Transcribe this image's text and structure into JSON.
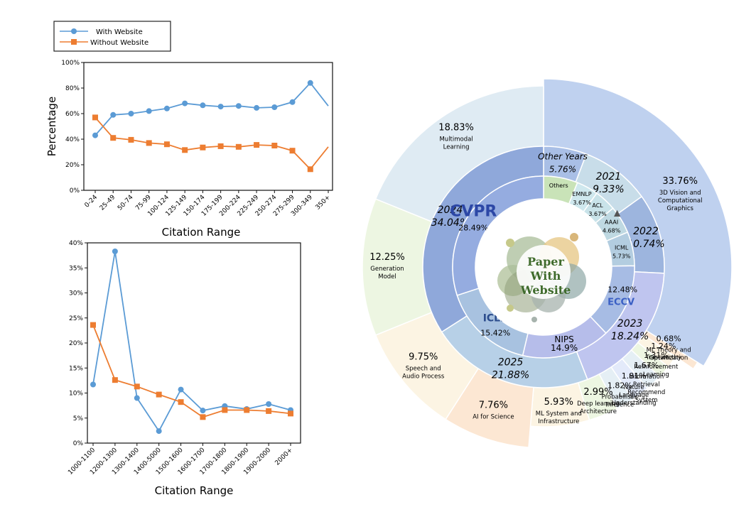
{
  "legend": {
    "with_label": "With Website",
    "without_label": "Without Website",
    "with_color": "#5b9bd5",
    "without_color": "#ed7d31"
  },
  "chart_data": [
    {
      "type": "line",
      "ylabel": "Percentage",
      "xlabel": "Citation Range",
      "ylim": [
        0,
        100
      ],
      "yticks": [
        "0%",
        "20%",
        "40%",
        "60%",
        "80%",
        "100%"
      ],
      "ytick_values": [
        0,
        20,
        40,
        60,
        80,
        100
      ],
      "categories": [
        "0-24",
        "25-49",
        "50-74",
        "75-99",
        "100-124",
        "125-149",
        "150-174",
        "175-199",
        "200-224",
        "225-249",
        "250-274",
        "275-299",
        "300-349",
        "350+"
      ],
      "series": [
        {
          "name": "With Website",
          "values": [
            43,
            59,
            60,
            62,
            64,
            68,
            66.5,
            65.5,
            66,
            64.5,
            65,
            69,
            84,
            66
          ]
        },
        {
          "name": "Without Website",
          "values": [
            57,
            41,
            39.5,
            37,
            36,
            31.5,
            33.5,
            34.5,
            34,
            35.5,
            35,
            31,
            16.5,
            34
          ]
        }
      ]
    },
    {
      "type": "line",
      "xlabel": "Citation Range",
      "ylim": [
        0,
        40
      ],
      "yticks": [
        "0%",
        "5%",
        "10%",
        "15%",
        "20%",
        "25%",
        "30%",
        "35%",
        "40%"
      ],
      "ytick_values": [
        0,
        5,
        10,
        15,
        20,
        25,
        30,
        35,
        40
      ],
      "categories": [
        "1000-1100",
        "1200-1300",
        "1300-1400",
        "1400-5000",
        "1500-1600",
        "1600-1700",
        "1700-1800",
        "1800-1900",
        "1900-2000",
        "2000+"
      ],
      "series": [
        {
          "name": "With Website",
          "values": [
            11.7,
            38.3,
            9.0,
            2.4,
            10.7,
            6.5,
            7.4,
            6.8,
            7.8,
            6.6
          ]
        },
        {
          "name": "Without Website",
          "values": [
            23.6,
            12.6,
            11.3,
            9.7,
            8.2,
            5.2,
            6.6,
            6.6,
            6.4,
            5.9
          ]
        }
      ]
    },
    {
      "type": "pie",
      "variant": "sunburst",
      "center_label": [
        "Paper",
        "With",
        "Website"
      ],
      "inner_ring": [
        {
          "label": "Others",
          "value": 5.76,
          "color": "#c9e3b8",
          "logo": ""
        },
        {
          "label": "EMNLP",
          "value": 3.67,
          "color": "#cfe8ee",
          "logo": ""
        },
        {
          "label": "ACL",
          "value": 3.67,
          "color": "#c9e3e9",
          "logo": ""
        },
        {
          "label": "AAAI",
          "value": 4.68,
          "color": "#bfd9e2",
          "logo": "▲"
        },
        {
          "label": "ICML",
          "value": 5.73,
          "color": "#b3cde0",
          "logo": ""
        },
        {
          "label": "12.48%",
          "value": 12.48,
          "color": "#a7bce4",
          "logo": "ECCV"
        },
        {
          "label": "NIPS",
          "value": 14.9,
          "color": "#b6bdea",
          "logo": ""
        },
        {
          "label": "15.42%",
          "value": 15.42,
          "color": "#a8c2e0",
          "logo": "ICLR"
        },
        {
          "label": "28.49%",
          "value": 28.49,
          "color": "#95ace0",
          "logo": "CVPR"
        }
      ],
      "inner_ring_values": [
        "5.76%",
        "3.67%",
        "3.67%",
        "4.68%",
        "5.73%",
        "14.9%"
      ],
      "year_ring": [
        {
          "year": "Other Years",
          "value": 5.76,
          "color": "#a9bfe6"
        },
        {
          "year": "2021",
          "value": 9.33,
          "color": "#c8dde9"
        },
        {
          "year": "2022",
          "value": 10.74,
          "color": "#9db5de"
        },
        {
          "year": "2023",
          "value": 18.24,
          "color": "#bfc5ef"
        },
        {
          "year": "2025",
          "value": 21.88,
          "color": "#b7d0e7"
        },
        {
          "year": "2024",
          "value": 34.04,
          "color": "#8fa8da"
        }
      ],
      "year_ring_values": [
        "5.76%",
        "9.33%",
        "10.74%",
        "18.24%",
        "21.88%",
        "34.04%"
      ],
      "outer_ring": [
        {
          "pct": "33.76%",
          "label": "3D Vision and Computational Graphics",
          "value": 33.76,
          "color": "#bfd1ef",
          "radius": 265
        },
        {
          "pct": "0.68%",
          "label": "ML Theory and Optimization",
          "value": 0.68,
          "color": "#fce7d3",
          "radius": 255
        },
        {
          "pct": "1.24%",
          "label": "Trustworthy",
          "value": 1.24,
          "color": "#fcf4e3",
          "radius": 225
        },
        {
          "pct": "1.31%",
          "label": "Reinforcement Learning",
          "value": 1.31,
          "color": "#edf6e2",
          "radius": 225
        },
        {
          "pct": "1.67%",
          "label": "Information Retrieval Recommend System",
          "value": 1.67,
          "color": "#e5eff5",
          "radius": 225
        },
        {
          "pct": "1.81%",
          "label": "Nature Language Understanding",
          "value": 1.81,
          "color": "#e3eafa",
          "radius": 225
        },
        {
          "pct": "1.82%",
          "label": "Probabilistic Inference",
          "value": 1.82,
          "color": "#e5eff5",
          "radius": 225
        },
        {
          "pct": "2.99%",
          "label": "Deep learning Architecture",
          "value": 2.99,
          "color": "#edf6e2",
          "radius": 225
        },
        {
          "pct": "5.93%",
          "label": "ML System and Infrastructure",
          "value": 5.93,
          "color": "#fcf4e3",
          "radius": 225
        },
        {
          "pct": "7.76%",
          "label": "AI for Science",
          "value": 7.76,
          "color": "#fce7d3",
          "radius": 255
        },
        {
          "pct": "9.75%",
          "label": "Speech and Audio Process",
          "value": 9.75,
          "color": "#fcf4e3",
          "radius": 255
        },
        {
          "pct": "12.25%",
          "label": "Generation Model",
          "value": 12.25,
          "color": "#edf6e2",
          "radius": 255
        },
        {
          "pct": "18.83%",
          "label": "Multimodal Learning",
          "value": 18.83,
          "color": "#dfebf3",
          "radius": 255
        }
      ]
    }
  ]
}
